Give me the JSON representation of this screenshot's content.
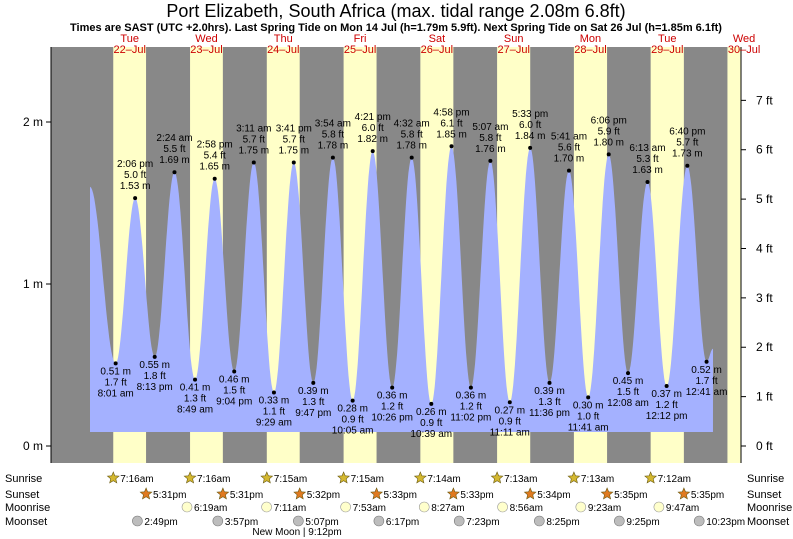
{
  "title": "Port Elizabeth, South Africa (max. tidal range 2.08m 6.8ft)",
  "subtitle": "Times are SAST (UTC +2.0hrs). Last Spring Tide on Mon 14 Jul (h=1.79m 5.9ft). Next Spring Tide on Sat 26 Jul (h=1.85m 6.1ft)",
  "colors": {
    "day": "#ffffc8",
    "night": "#888888",
    "water": "#a4b1ff",
    "day_label": "#cc0000",
    "sun_icon": "#d4b830",
    "sunset_icon": "#e07a20",
    "moonrise_icon": "#ffffcc",
    "moonset_icon": "#bdbdbd"
  },
  "days": [
    {
      "dow": "Tue",
      "date": "22–Jul"
    },
    {
      "dow": "Wed",
      "date": "23–Jul"
    },
    {
      "dow": "Thu",
      "date": "24–Jul"
    },
    {
      "dow": "Fri",
      "date": "25–Jul"
    },
    {
      "dow": "Sat",
      "date": "26–Jul"
    },
    {
      "dow": "Sun",
      "date": "27–Jul"
    },
    {
      "dow": "Mon",
      "date": "28–Jul"
    },
    {
      "dow": "Tue",
      "date": "29–Jul"
    },
    {
      "dow": "Wed",
      "date": "30–Jul"
    }
  ],
  "events": {
    "row_labels": [
      "Sunrise",
      "Sunset",
      "Moonrise",
      "Moonset"
    ],
    "sunrise": [
      "7:16am",
      "7:16am",
      "7:15am",
      "7:15am",
      "7:14am",
      "7:13am",
      "7:13am",
      "7:12am"
    ],
    "sunset": [
      "5:31pm",
      "5:31pm",
      "5:32pm",
      "5:33pm",
      "5:33pm",
      "5:34pm",
      "5:35pm",
      "5:35pm"
    ],
    "moonrise": [
      "6:19am",
      "7:11am",
      "7:53am",
      "8:27am",
      "8:56am",
      "9:23am",
      "9:47am"
    ],
    "moonset": [
      "2:49pm",
      "3:57pm",
      "5:07pm",
      "6:17pm",
      "7:23pm",
      "8:25pm",
      "9:25pm",
      "10:23pm"
    ],
    "moon_phase": "New Moon | 9:12pm"
  },
  "chart_data": {
    "type": "area",
    "title": "Port Elizabeth, South Africa (max. tidal range 2.08m 6.8ft)",
    "x_unit": "hours from Tue 22-Jul 00:00 SAST",
    "y_left_unit": "m",
    "y_right_unit": "ft",
    "ylim_m": [
      -0.05,
      2.38
    ],
    "y_ticks_m": [
      {
        "v": 0,
        "label": "0 m"
      },
      {
        "v": 1,
        "label": "1 m"
      },
      {
        "v": 2,
        "label": "2 m"
      }
    ],
    "y_ticks_ft": [
      {
        "v": 0,
        "label": "0 ft"
      },
      {
        "v": 1,
        "label": "1 ft"
      },
      {
        "v": 2,
        "label": "2 ft"
      },
      {
        "v": 3,
        "label": "3 ft"
      },
      {
        "v": 4,
        "label": "4 ft"
      },
      {
        "v": 5,
        "label": "5 ft"
      },
      {
        "v": 6,
        "label": "6 ft"
      },
      {
        "v": 7,
        "label": "7 ft"
      }
    ],
    "start_level_m": 1.6,
    "end_level_m": 0.6,
    "tides": [
      {
        "type": "low",
        "time": "8:01 am",
        "t": 8.02,
        "m": 0.51,
        "ft": "1.7 ft",
        "mlabel": "0.51 m"
      },
      {
        "type": "high",
        "time": "2:06 pm",
        "t": 14.1,
        "m": 1.53,
        "ft": "5.0 ft",
        "mlabel": "1.53 m"
      },
      {
        "type": "low",
        "time": "8:13 pm",
        "t": 20.22,
        "m": 0.55,
        "ft": "1.8 ft",
        "mlabel": "0.55 m"
      },
      {
        "type": "high",
        "time": "2:24 am",
        "t": 26.4,
        "m": 1.69,
        "ft": "5.5 ft",
        "mlabel": "1.69 m"
      },
      {
        "type": "low",
        "time": "8:49 am",
        "t": 32.82,
        "m": 0.41,
        "ft": "1.3 ft",
        "mlabel": "0.41 m"
      },
      {
        "type": "high",
        "time": "2:58 pm",
        "t": 38.97,
        "m": 1.65,
        "ft": "5.4 ft",
        "mlabel": "1.65 m"
      },
      {
        "type": "low",
        "time": "9:04 pm",
        "t": 45.07,
        "m": 0.46,
        "ft": "1.5 ft",
        "mlabel": "0.46 m"
      },
      {
        "type": "high",
        "time": "3:11 am",
        "t": 51.18,
        "m": 1.75,
        "ft": "5.7 ft",
        "mlabel": "1.75 m"
      },
      {
        "type": "low",
        "time": "9:29 am",
        "t": 57.48,
        "m": 0.33,
        "ft": "1.1 ft",
        "mlabel": "0.33 m"
      },
      {
        "type": "high",
        "time": "3:41 pm",
        "t": 63.68,
        "m": 1.75,
        "ft": "5.7 ft",
        "mlabel": "1.75 m"
      },
      {
        "type": "low",
        "time": "9:47 pm",
        "t": 69.78,
        "m": 0.39,
        "ft": "1.3 ft",
        "mlabel": "0.39 m"
      },
      {
        "type": "high",
        "time": "3:54 am",
        "t": 75.9,
        "m": 1.78,
        "ft": "5.8 ft",
        "mlabel": "1.78 m"
      },
      {
        "type": "low",
        "time": "10:05 am",
        "t": 82.08,
        "m": 0.28,
        "ft": "0.9 ft",
        "mlabel": "0.28 m"
      },
      {
        "type": "high",
        "time": "4:21 pm",
        "t": 88.35,
        "m": 1.82,
        "ft": "6.0 ft",
        "mlabel": "1.82 m"
      },
      {
        "type": "low",
        "time": "10:26 pm",
        "t": 94.43,
        "m": 0.36,
        "ft": "1.2 ft",
        "mlabel": "0.36 m"
      },
      {
        "type": "high",
        "time": "4:32 am",
        "t": 100.53,
        "m": 1.78,
        "ft": "5.8 ft",
        "mlabel": "1.78 m"
      },
      {
        "type": "low",
        "time": "10:39 am",
        "t": 106.65,
        "m": 0.26,
        "ft": "0.9 ft",
        "mlabel": "0.26 m"
      },
      {
        "type": "high",
        "time": "4:58 pm",
        "t": 112.97,
        "m": 1.85,
        "ft": "6.1 ft",
        "mlabel": "1.85 m"
      },
      {
        "type": "low",
        "time": "11:02 pm",
        "t": 119.03,
        "m": 0.36,
        "ft": "1.2 ft",
        "mlabel": "0.36 m"
      },
      {
        "type": "high",
        "time": "5:07 am",
        "t": 125.12,
        "m": 1.76,
        "ft": "5.8 ft",
        "mlabel": "1.76 m"
      },
      {
        "type": "low",
        "time": "11:11 am",
        "t": 131.18,
        "m": 0.27,
        "ft": "0.9 ft",
        "mlabel": "0.27 m"
      },
      {
        "type": "high",
        "time": "5:33 pm",
        "t": 137.55,
        "m": 1.84,
        "ft": "6.0 ft",
        "mlabel": "1.84 m"
      },
      {
        "type": "low",
        "time": "11:36 pm",
        "t": 143.6,
        "m": 0.39,
        "ft": "1.3 ft",
        "mlabel": "0.39 m"
      },
      {
        "type": "high",
        "time": "5:41 am",
        "t": 149.68,
        "m": 1.7,
        "ft": "5.6 ft",
        "mlabel": "1.70 m"
      },
      {
        "type": "low",
        "time": "11:41 am",
        "t": 155.68,
        "m": 0.3,
        "ft": "1.0 ft",
        "mlabel": "0.30 m"
      },
      {
        "type": "high",
        "time": "6:06 pm",
        "t": 162.1,
        "m": 1.8,
        "ft": "5.9 ft",
        "mlabel": "1.80 m"
      },
      {
        "type": "low",
        "time": "12:08 am",
        "t": 168.13,
        "m": 0.45,
        "ft": "1.5 ft",
        "mlabel": "0.45 m"
      },
      {
        "type": "high",
        "time": "6:13 am",
        "t": 174.22,
        "m": 1.63,
        "ft": "5.3 ft",
        "mlabel": "1.63 m"
      },
      {
        "type": "low",
        "time": "12:12 pm",
        "t": 180.2,
        "m": 0.37,
        "ft": "1.2 ft",
        "mlabel": "0.37 m"
      },
      {
        "type": "high",
        "time": "6:40 pm",
        "t": 186.67,
        "m": 1.73,
        "ft": "5.7 ft",
        "mlabel": "1.73 m"
      },
      {
        "type": "low",
        "time": "12:41 am",
        "t": 192.68,
        "m": 0.52,
        "ft": "1.7 ft",
        "mlabel": "0.52 m"
      }
    ]
  }
}
